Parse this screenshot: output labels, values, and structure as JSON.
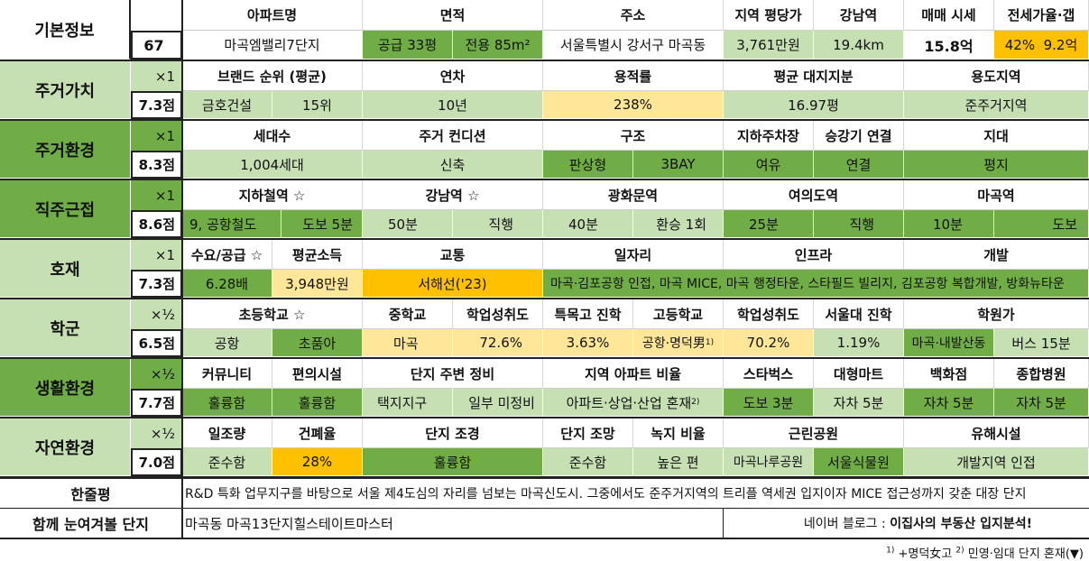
{
  "colors": {
    "light_green": "#c6e0b4",
    "dark_green": "#70ad47",
    "mid_green": "#a9d18e",
    "yellow": "#ffe699",
    "orange": "#ffc000",
    "white": "#ffffff"
  },
  "basic": {
    "label": "기본정보",
    "number": "67",
    "headers": [
      "아파트명",
      "면적",
      "주소",
      "지역 평당가",
      "강남역",
      "매매 시세",
      "전세가율·갭"
    ],
    "apt": "마곡엠밸리7단지",
    "area_supply": "공급 33평",
    "area_use": "전용 85m²",
    "address": "서울특별시 강서구 마곡동",
    "price_per_py": "3,761만원",
    "gangnam_dist": "19.4km",
    "sale_price": "15.8억",
    "jeonse": "42%  9.2억"
  },
  "residential_value": {
    "label": "주거가치",
    "mult": "×1",
    "score": "7.3점",
    "headers": [
      "브랜드 순위 (평균)",
      "연차",
      "용적률",
      "평균 대지지분",
      "용도지역"
    ],
    "brand": "금호건설",
    "brand_rank": "15위",
    "age": "10년",
    "far": "238%",
    "land_share": "16.97평",
    "zone": "준주거지역"
  },
  "residential_env": {
    "label": "주거환경",
    "mult": "×1",
    "score": "8.3점",
    "headers": [
      "세대수",
      "주거 컨디션",
      "구조",
      "지하주차장",
      "승강기 연결",
      "지대"
    ],
    "households": "1,004세대",
    "condition": "신축",
    "structure": "판상형",
    "bay": "3BAY",
    "parking": "여유",
    "elevator": "연결",
    "terrain": "평지"
  },
  "commute": {
    "label": "직주근접",
    "mult": "×1",
    "score": "8.6점",
    "headers": [
      "지하철역 ☆",
      "강남역 ☆",
      "광화문역",
      "여의도역",
      "마곡역"
    ],
    "subway_line": "9, 공항철도",
    "subway_walk": "도보 5분",
    "gangnam_time": "50분",
    "gangnam_mode": "직행",
    "gwanghwamun_time": "40분",
    "gwanghwamun_mode": "환승 1회",
    "yeouido_time": "25분",
    "yeouido_mode": "직행",
    "magok_time": "10분",
    "magok_mode": "도보"
  },
  "development": {
    "label": "호재",
    "mult": "×1",
    "score": "7.3점",
    "headers": [
      "수요/공급 ☆",
      "평균소득",
      "교통",
      "일자리",
      "인프라",
      "개발"
    ],
    "demand_supply": "6.28배",
    "income": "3,948만원",
    "transport": "서해선('23)",
    "details": "마곡·김포공항 인접, 마곡 MICE, 마곡 행정타운, 스타필드 빌리지, 김포공항 복합개발, 방화뉴타운"
  },
  "school": {
    "label": "학군",
    "mult": "×½",
    "score": "6.5점",
    "headers": [
      "초등학교 ☆",
      "중학교",
      "학업성취도",
      "특목고 진학",
      "고등학교",
      "학업성취도",
      "서울대 진학",
      "학원가"
    ],
    "elementary": "공항",
    "elementary2": "초품아",
    "middle": "마곡",
    "middle_score": "72.6%",
    "special_hs": "3.63%",
    "high": "공항·명덕男",
    "high_sup": "1)",
    "high_score": "70.2%",
    "snu": "1.19%",
    "academy": "마곡·내발산동",
    "academy_bus": "버스 15분"
  },
  "living_env": {
    "label": "생활환경",
    "mult": "×½",
    "score": "7.7점",
    "headers": [
      "커뮤니티",
      "편의시설",
      "단지 주변 정비",
      "지역 아파트 비율",
      "스타벅스",
      "대형마트",
      "백화점",
      "종합병원"
    ],
    "community": "훌륭함",
    "amenities": "훌륭함",
    "surround1": "택지지구",
    "surround2": "일부 미정비",
    "apt_ratio": "아파트·상업·산업 혼재",
    "apt_ratio_sup": "2)",
    "starbucks": "도보 3분",
    "mart": "자차 5분",
    "department": "자차 5분",
    "hospital": "자차 5분"
  },
  "nature_env": {
    "label": "자연환경",
    "mult": "×½",
    "score": "7.0점",
    "headers": [
      "일조량",
      "건폐율",
      "단지 조경",
      "단지 조망",
      "녹지 비율",
      "근린공원",
      "유해시설"
    ],
    "sunlight": "준수함",
    "coverage": "28%",
    "landscape": "훌륭함",
    "view": "준수함",
    "green_ratio": "높은 편",
    "park1": "마곡나루공원",
    "park2": "서울식물원",
    "hazard": "개발지역 인접"
  },
  "summary": {
    "label": "한줄평",
    "text": "R&D 특화 업무지구를 바탕으로 서울 제4도심의 자리를 넘보는 마곡신도시. 그중에서도 준주거지역의 트리플 역세권 입지이자 MICE 접근성까지 갖춘 대장 단지"
  },
  "related": {
    "label": "함께 눈여겨볼 단지",
    "text": "마곡동 마곡13단지힐스테이트마스터",
    "blog_prefix": "네이버 블로그 : ",
    "blog_name": "이집사의 부동산 입지분석!"
  },
  "footnote": {
    "n1": "1)",
    "t1": " +명덕女고 ",
    "n2": "2)",
    "t2": " 민영·임대 단지 혼재(▼)"
  }
}
